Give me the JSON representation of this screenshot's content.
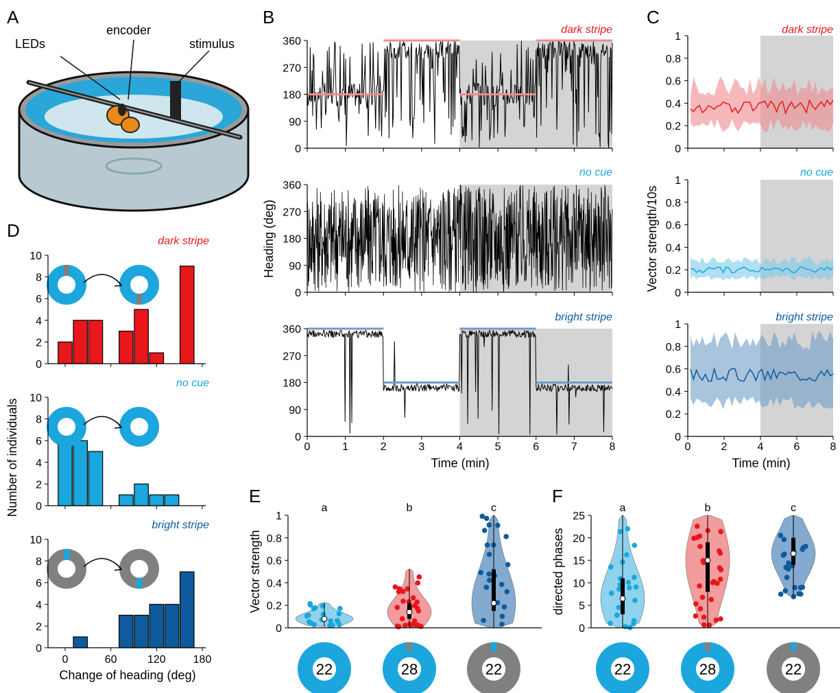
{
  "colors": {
    "red": "#e8171c",
    "red_light": "#f08b8d",
    "cyan": "#1ba6dd",
    "cyan_light": "#7ccbea",
    "blue": "#0e5a9c",
    "blue_light": "#6f9cc7",
    "gray": "#808080",
    "shade": "#d4d4d4"
  },
  "panel_labels": {
    "a": "A",
    "b": "B",
    "c": "C",
    "d": "D",
    "e": "E",
    "f": "F"
  },
  "panelA": {
    "leds": "LEDs",
    "encoder": "encoder",
    "stimulus": "stimulus"
  },
  "conditions": {
    "dark": "dark stripe",
    "nocue": "no cue",
    "bright": "bright stripe"
  },
  "chart_data": [
    {
      "id": "B",
      "type": "line",
      "ylabel": "Heading (deg)",
      "xlabel": "Time (min)",
      "xlim": [
        0,
        8
      ],
      "ylim": [
        0,
        360
      ],
      "xticks": [
        0,
        1,
        2,
        3,
        4,
        5,
        6,
        7,
        8
      ],
      "yticks": [
        0,
        90,
        180,
        270,
        360
      ],
      "shaded_from": 4,
      "rows": [
        {
          "name": "dark stripe",
          "stimulus_segments": [
            [
              0,
              2,
              180
            ],
            [
              2,
              4,
              360
            ],
            [
              4,
              6,
              180
            ],
            [
              6,
              8,
              360
            ]
          ]
        },
        {
          "name": "no cue",
          "stimulus_segments": []
        },
        {
          "name": "bright stripe",
          "stimulus_segments": [
            [
              0,
              2,
              360
            ],
            [
              2,
              4,
              180
            ],
            [
              4,
              6,
              360
            ],
            [
              6,
              8,
              180
            ]
          ]
        }
      ]
    },
    {
      "id": "C",
      "type": "line",
      "ylabel": "Vector strength/10s",
      "xlabel": "Time (min)",
      "xlim": [
        0,
        8
      ],
      "ylim": [
        0,
        1
      ],
      "xticks": [
        0,
        2,
        4,
        6,
        8
      ],
      "yticks": [
        0,
        0.2,
        0.4,
        0.6,
        0.8,
        1
      ],
      "shaded_from": 4,
      "series": [
        {
          "name": "dark stripe",
          "mean": 0.37,
          "band_low": 0.2,
          "band_high": 0.55
        },
        {
          "name": "no cue",
          "mean": 0.2,
          "band_low": 0.13,
          "band_high": 0.28
        },
        {
          "name": "bright stripe",
          "mean": 0.55,
          "band_low": 0.3,
          "band_high": 0.85
        }
      ]
    },
    {
      "id": "D",
      "type": "bar",
      "ylabel": "Number of individuals",
      "xlabel": "Change of heading (deg)",
      "xticks": [
        0,
        60,
        120,
        180
      ],
      "ylim": [
        0,
        10
      ],
      "yticks": [
        0,
        2,
        4,
        6,
        8,
        10
      ],
      "bin_centers": [
        0,
        20,
        40,
        60,
        80,
        100,
        120,
        140,
        160
      ],
      "series": [
        {
          "name": "dark stripe",
          "values": [
            2,
            4,
            4,
            0,
            3,
            5,
            1,
            0,
            9
          ]
        },
        {
          "name": "no cue",
          "values": [
            6,
            6,
            5,
            0,
            1,
            2,
            1,
            1,
            0
          ]
        },
        {
          "name": "bright stripe",
          "values": [
            0,
            1,
            0,
            0,
            3,
            3,
            4,
            4,
            7
          ]
        }
      ]
    },
    {
      "id": "E",
      "type": "scatter",
      "ylabel": "Vector strength",
      "ylim": [
        0,
        1
      ],
      "yticks": [
        0,
        0.2,
        0.4,
        0.6,
        0.8,
        1
      ],
      "groups": [
        {
          "letter": "a",
          "n": "22",
          "median": 0.08,
          "q1": 0.06,
          "q3": 0.1
        },
        {
          "letter": "b",
          "n": "28",
          "median": 0.14,
          "q1": 0.08,
          "q3": 0.22
        },
        {
          "letter": "c",
          "n": "22",
          "median": 0.22,
          "q1": 0.15,
          "q3": 0.52
        }
      ]
    },
    {
      "id": "F",
      "type": "scatter",
      "ylabel": "directed phases",
      "ylim": [
        0,
        25
      ],
      "yticks": [
        0,
        5,
        10,
        15,
        20,
        25
      ],
      "groups": [
        {
          "letter": "a",
          "n": "22",
          "median": 6.5,
          "q1": 3,
          "q3": 11
        },
        {
          "letter": "b",
          "n": "28",
          "median": 15,
          "q1": 8,
          "q3": 19
        },
        {
          "letter": "c",
          "n": "22",
          "median": 16.5,
          "q1": 14,
          "q3": 20
        }
      ]
    }
  ]
}
